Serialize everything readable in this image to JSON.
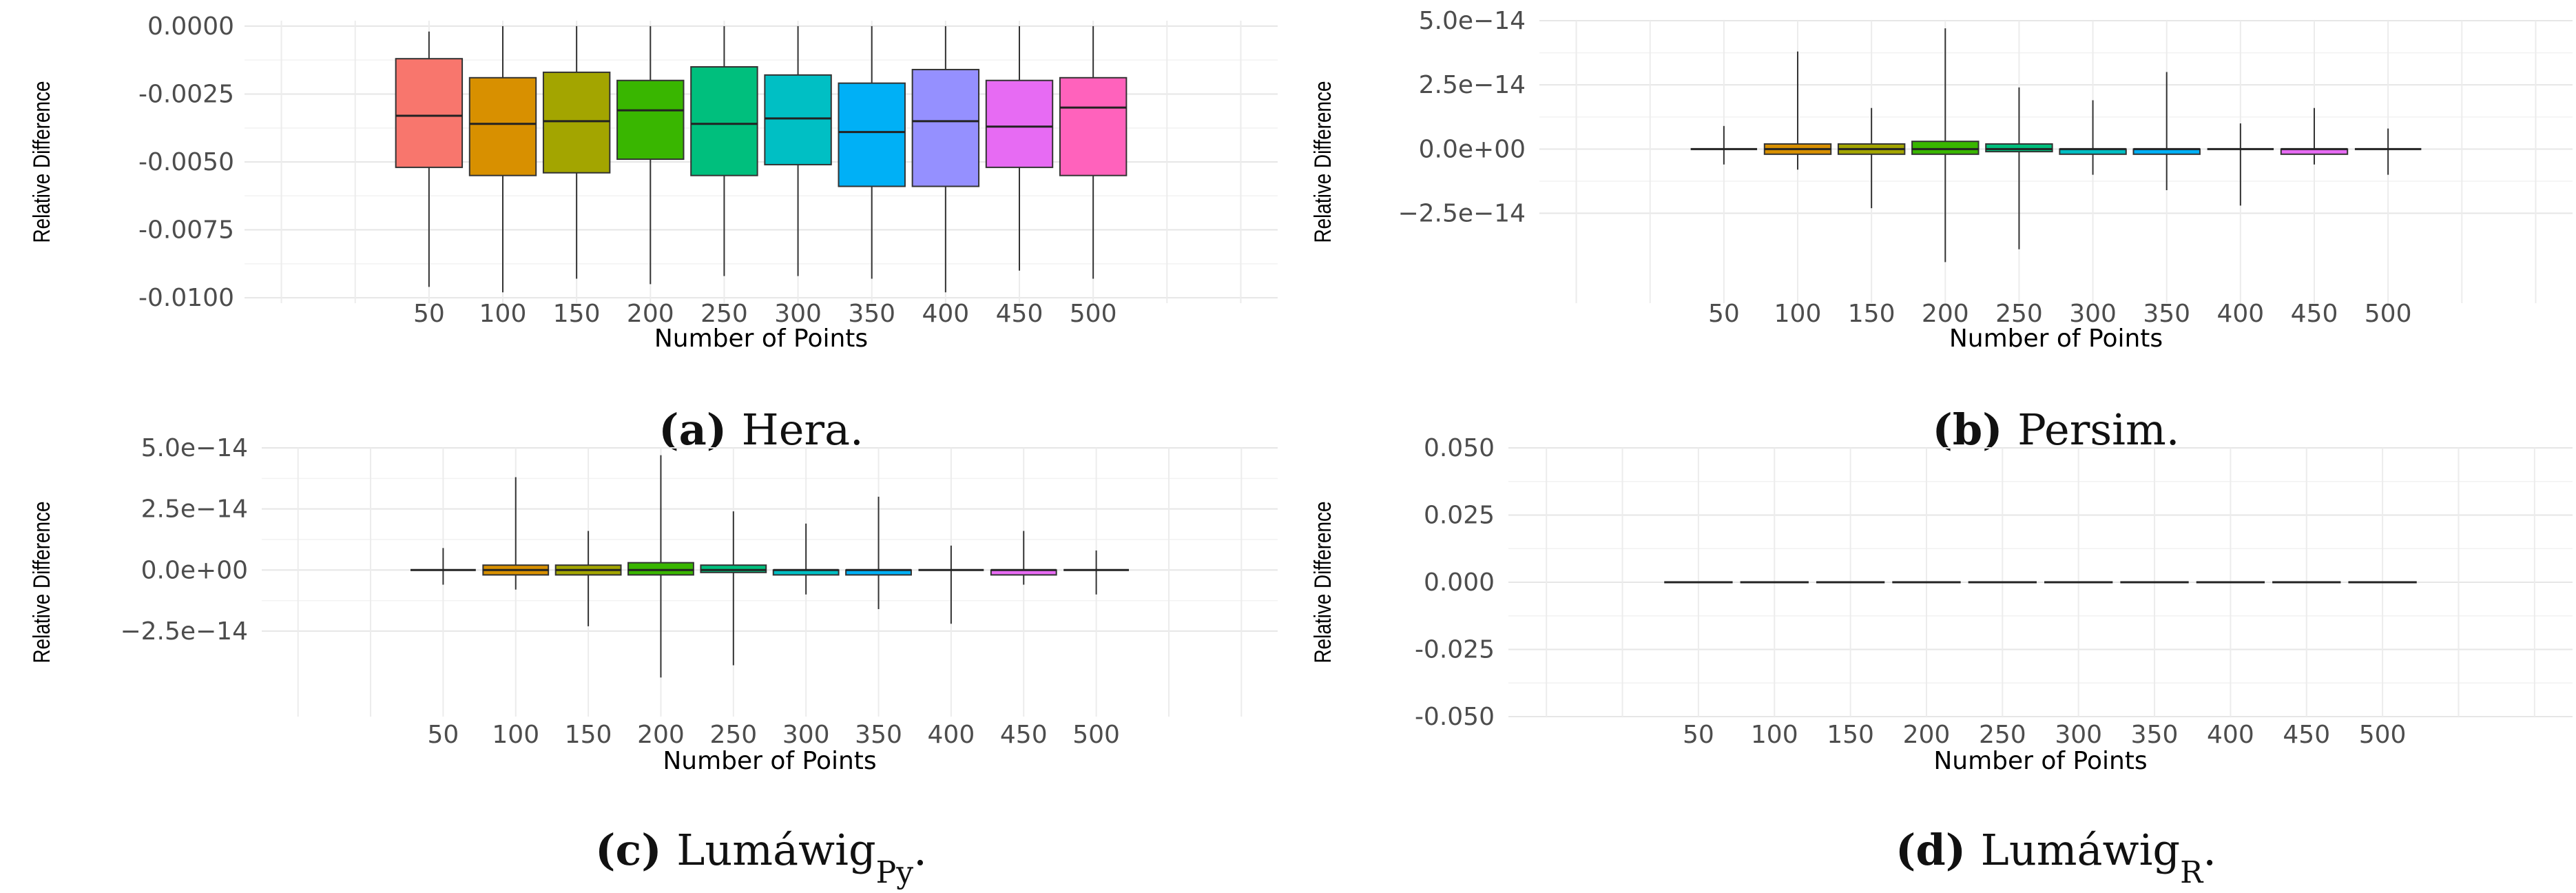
{
  "chart_data": [
    {
      "id": "a",
      "type": "box",
      "caption": {
        "letter": "(a)",
        "text": "Hera."
      },
      "xlabel": "Number of Points",
      "ylabel": "Relative Difference",
      "ylim": [
        -0.0102,
        0.0002
      ],
      "yticks": [
        0.0,
        -0.0025,
        -0.005,
        -0.0075,
        -0.01
      ],
      "ytick_labels": [
        "0.0000",
        "-0.0025",
        "-0.0050",
        "-0.0075",
        "-0.0100"
      ],
      "categories": [
        "50",
        "100",
        "150",
        "200",
        "250",
        "300",
        "350",
        "400",
        "450",
        "500"
      ],
      "colors": [
        "#F8766D",
        "#D89000",
        "#A3A500",
        "#39B600",
        "#00BF7D",
        "#00BFC4",
        "#00B0F6",
        "#9590FF",
        "#E76BF3",
        "#FF62BC"
      ],
      "boxes": [
        {
          "q1": -0.0052,
          "median": -0.0033,
          "q3": -0.0012,
          "wmin": -0.0096,
          "wmax": -0.0002
        },
        {
          "q1": -0.0055,
          "median": -0.0036,
          "q3": -0.0019,
          "wmin": -0.0098,
          "wmax": 0.0
        },
        {
          "q1": -0.0054,
          "median": -0.0035,
          "q3": -0.0017,
          "wmin": -0.0093,
          "wmax": 0.0
        },
        {
          "q1": -0.0049,
          "median": -0.0031,
          "q3": -0.002,
          "wmin": -0.0095,
          "wmax": 0.0
        },
        {
          "q1": -0.0055,
          "median": -0.0036,
          "q3": -0.0015,
          "wmin": -0.0092,
          "wmax": 0.0
        },
        {
          "q1": -0.0051,
          "median": -0.0034,
          "q3": -0.0018,
          "wmin": -0.0092,
          "wmax": 0.0
        },
        {
          "q1": -0.0059,
          "median": -0.0039,
          "q3": -0.0021,
          "wmin": -0.0093,
          "wmax": 0.0
        },
        {
          "q1": -0.0059,
          "median": -0.0035,
          "q3": -0.0016,
          "wmin": -0.0098,
          "wmax": 0.0
        },
        {
          "q1": -0.0052,
          "median": -0.0037,
          "q3": -0.002,
          "wmin": -0.009,
          "wmax": 0.0
        },
        {
          "q1": -0.0055,
          "median": -0.003,
          "q3": -0.0019,
          "wmin": -0.0093,
          "wmax": 0.0
        }
      ]
    },
    {
      "id": "b",
      "type": "box",
      "caption": {
        "letter": "(b)",
        "text": "Persim."
      },
      "xlabel": "Number of Points",
      "ylabel": "Relative Difference",
      "ylim": [
        -6e-14,
        5e-14
      ],
      "yticks": [
        5e-14,
        2.5e-14,
        0.0,
        -2.5e-14
      ],
      "ytick_labels": [
        "5.0e−14",
        "2.5e−14",
        "0.0e+00",
        "−2.5e−14"
      ],
      "categories": [
        "50",
        "100",
        "150",
        "200",
        "250",
        "300",
        "350",
        "400",
        "450",
        "500"
      ],
      "colors": [
        "#F8766D",
        "#D89000",
        "#A3A500",
        "#39B600",
        "#00BF7D",
        "#00BFC4",
        "#00B0F6",
        "#9590FF",
        "#E76BF3",
        "#FF62BC"
      ],
      "boxes": [
        {
          "q1": 0.0,
          "median": 0.0,
          "q3": 0.0,
          "wmin": -6e-15,
          "wmax": 9e-15
        },
        {
          "q1": -2e-15,
          "median": 0.0,
          "q3": 2e-15,
          "wmin": -8e-15,
          "wmax": 3.8e-14
        },
        {
          "q1": -2e-15,
          "median": 0.0,
          "q3": 2e-15,
          "wmin": -2.3e-14,
          "wmax": 1.6e-14
        },
        {
          "q1": -2e-15,
          "median": 0.0,
          "q3": 3e-15,
          "wmin": -4.4e-14,
          "wmax": 4.7e-14
        },
        {
          "q1": -1e-15,
          "median": 0.0,
          "q3": 2e-15,
          "wmin": -3.9e-14,
          "wmax": 2.4e-14
        },
        {
          "q1": -2e-15,
          "median": 0.0,
          "q3": 0.0,
          "wmin": -1e-14,
          "wmax": 1.9e-14
        },
        {
          "q1": -2e-15,
          "median": 0.0,
          "q3": 0.0,
          "wmin": -1.6e-14,
          "wmax": 3e-14
        },
        {
          "q1": 0.0,
          "median": 0.0,
          "q3": 0.0,
          "wmin": -2.2e-14,
          "wmax": 1e-14
        },
        {
          "q1": -2e-15,
          "median": 0.0,
          "q3": 0.0,
          "wmin": -6e-15,
          "wmax": 1.6e-14
        },
        {
          "q1": 0.0,
          "median": 0.0,
          "q3": 0.0,
          "wmin": -1e-14,
          "wmax": 8e-15
        }
      ]
    },
    {
      "id": "c",
      "type": "box",
      "caption": {
        "letter": "(c)",
        "text": "Lumáwig",
        "sub": "Py",
        "end": "."
      },
      "xlabel": "Number of Points",
      "ylabel": "Relative Difference",
      "ylim": [
        -6e-14,
        5e-14
      ],
      "yticks": [
        5e-14,
        2.5e-14,
        0.0,
        -2.5e-14
      ],
      "ytick_labels": [
        "5.0e−14",
        "2.5e−14",
        "0.0e+00",
        "−2.5e−14"
      ],
      "categories": [
        "50",
        "100",
        "150",
        "200",
        "250",
        "300",
        "350",
        "400",
        "450",
        "500"
      ],
      "colors": [
        "#F8766D",
        "#D89000",
        "#A3A500",
        "#39B600",
        "#00BF7D",
        "#00BFC4",
        "#00B0F6",
        "#9590FF",
        "#E76BF3",
        "#FF62BC"
      ],
      "boxes": [
        {
          "q1": 0.0,
          "median": 0.0,
          "q3": 0.0,
          "wmin": -6e-15,
          "wmax": 9e-15
        },
        {
          "q1": -2e-15,
          "median": 0.0,
          "q3": 2e-15,
          "wmin": -8e-15,
          "wmax": 3.8e-14
        },
        {
          "q1": -2e-15,
          "median": 0.0,
          "q3": 2e-15,
          "wmin": -2.3e-14,
          "wmax": 1.6e-14
        },
        {
          "q1": -2e-15,
          "median": 0.0,
          "q3": 3e-15,
          "wmin": -4.4e-14,
          "wmax": 4.7e-14
        },
        {
          "q1": -1e-15,
          "median": 0.0,
          "q3": 2e-15,
          "wmin": -3.9e-14,
          "wmax": 2.4e-14
        },
        {
          "q1": -2e-15,
          "median": 0.0,
          "q3": 0.0,
          "wmin": -1e-14,
          "wmax": 1.9e-14
        },
        {
          "q1": -2e-15,
          "median": 0.0,
          "q3": 0.0,
          "wmin": -1.6e-14,
          "wmax": 3e-14
        },
        {
          "q1": 0.0,
          "median": 0.0,
          "q3": 0.0,
          "wmin": -2.2e-14,
          "wmax": 1e-14
        },
        {
          "q1": -2e-15,
          "median": 0.0,
          "q3": 0.0,
          "wmin": -6e-15,
          "wmax": 1.6e-14
        },
        {
          "q1": 0.0,
          "median": 0.0,
          "q3": 0.0,
          "wmin": -1e-14,
          "wmax": 8e-15
        }
      ]
    },
    {
      "id": "d",
      "type": "box",
      "caption": {
        "letter": "(d)",
        "text": "Lumáwig",
        "sub": "R",
        "end": "."
      },
      "xlabel": "Number of Points",
      "ylabel": "Relative Difference",
      "ylim": [
        -0.05,
        0.05
      ],
      "yticks": [
        0.05,
        0.025,
        0.0,
        -0.025,
        -0.05
      ],
      "ytick_labels": [
        "0.050",
        "0.025",
        "0.000",
        "-0.025",
        "-0.050"
      ],
      "categories": [
        "50",
        "100",
        "150",
        "200",
        "250",
        "300",
        "350",
        "400",
        "450",
        "500"
      ],
      "colors": [
        "#000000",
        "#000000",
        "#000000",
        "#000000",
        "#000000",
        "#000000",
        "#000000",
        "#000000",
        "#000000",
        "#000000"
      ],
      "boxes": [
        {
          "q1": 0,
          "median": 0,
          "q3": 0,
          "wmin": 0,
          "wmax": 0
        },
        {
          "q1": 0,
          "median": 0,
          "q3": 0,
          "wmin": 0,
          "wmax": 0
        },
        {
          "q1": 0,
          "median": 0,
          "q3": 0,
          "wmin": 0,
          "wmax": 0
        },
        {
          "q1": 0,
          "median": 0,
          "q3": 0,
          "wmin": 0,
          "wmax": 0
        },
        {
          "q1": 0,
          "median": 0,
          "q3": 0,
          "wmin": 0,
          "wmax": 0
        },
        {
          "q1": 0,
          "median": 0,
          "q3": 0,
          "wmin": 0,
          "wmax": 0
        },
        {
          "q1": 0,
          "median": 0,
          "q3": 0,
          "wmin": 0,
          "wmax": 0
        },
        {
          "q1": 0,
          "median": 0,
          "q3": 0,
          "wmin": 0,
          "wmax": 0
        },
        {
          "q1": 0,
          "median": 0,
          "q3": 0,
          "wmin": 0,
          "wmax": 0
        },
        {
          "q1": 0,
          "median": 0,
          "q3": 0,
          "wmin": 0,
          "wmax": 0
        }
      ]
    }
  ]
}
